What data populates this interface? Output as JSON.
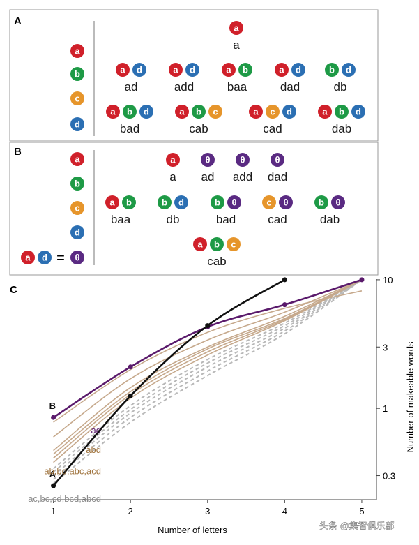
{
  "colors": {
    "a": "#d0202a",
    "b": "#1e9a46",
    "c": "#e6952b",
    "d": "#2b6fb3",
    "theta": "#5a2a82",
    "panel_border": "#9a9a9a",
    "line_A": "#111111",
    "line_B": "#5a1a6b",
    "line_tan": "#c6a98c",
    "line_gray": "#b8b8b8",
    "label_tan": "#a0743e",
    "label_gray": "#8a8a8a"
  },
  "panel_a": {
    "title": "A",
    "alphabet": [
      "a",
      "b",
      "c",
      "d"
    ],
    "words": [
      {
        "letters": [
          "a"
        ],
        "label": "a"
      },
      {
        "letters": [
          "a",
          "d"
        ],
        "label": "ad"
      },
      {
        "letters": [
          "a",
          "d"
        ],
        "label": "add"
      },
      {
        "letters": [
          "a",
          "b"
        ],
        "label": "baa"
      },
      {
        "letters": [
          "a",
          "d"
        ],
        "label": "dad"
      },
      {
        "letters": [
          "b",
          "d"
        ],
        "label": "db"
      },
      {
        "letters": [
          "a",
          "b",
          "d"
        ],
        "label": "bad"
      },
      {
        "letters": [
          "a",
          "b",
          "c"
        ],
        "label": "cab"
      },
      {
        "letters": [
          "a",
          "c",
          "d"
        ],
        "label": "cad"
      },
      {
        "letters": [
          "a",
          "b",
          "d"
        ],
        "label": "dab"
      }
    ]
  },
  "panel_b": {
    "title": "B",
    "alphabet": [
      "a",
      "b",
      "c",
      "d"
    ],
    "combo": {
      "left": [
        "a",
        "d"
      ],
      "equals": "=",
      "right": "θ"
    },
    "words": [
      {
        "letters": [
          "a"
        ],
        "label": "a"
      },
      {
        "letters": [
          "θ"
        ],
        "label": "ad"
      },
      {
        "letters": [
          "θ"
        ],
        "label": "add"
      },
      {
        "letters": [
          "θ"
        ],
        "label": "dad"
      },
      {
        "letters": [
          "a",
          "b"
        ],
        "label": "baa"
      },
      {
        "letters": [
          "b",
          "d"
        ],
        "label": "db"
      },
      {
        "letters": [
          "b",
          "θ"
        ],
        "label": "bad"
      },
      {
        "letters": [
          "c",
          "θ"
        ],
        "label": "cad"
      },
      {
        "letters": [
          "b",
          "θ"
        ],
        "label": "dab"
      },
      {
        "letters": [
          "a",
          "b",
          "c"
        ],
        "label": "cab"
      }
    ]
  },
  "chart_data": {
    "title": "C",
    "type": "line",
    "xlabel": "Number of letters",
    "ylabel": "Number of makeable words",
    "x_ticks": [
      1,
      2,
      3,
      4,
      5
    ],
    "y_ticks": [
      {
        "v": 0.3,
        "label": "0.3"
      },
      {
        "v": 1,
        "label": "1"
      },
      {
        "v": 3,
        "label": "3"
      },
      {
        "v": 10,
        "label": "10"
      }
    ],
    "y_scale": "log",
    "ylim": [
      0.2,
      10.5
    ],
    "xlim": [
      0.85,
      5.1
    ],
    "series": [
      {
        "name": "A",
        "kind": "A",
        "label": "A",
        "x": [
          1,
          2,
          3,
          4
        ],
        "y": [
          0.25,
          1.25,
          4.4,
          10
        ]
      },
      {
        "name": "B",
        "kind": "B",
        "label": "B",
        "x": [
          1,
          2,
          3,
          4,
          5
        ],
        "y": [
          0.85,
          2.1,
          4.3,
          6.4,
          10
        ]
      },
      {
        "name": "ad",
        "kind": "tan",
        "x": [
          1,
          2,
          3,
          4,
          5
        ],
        "y": [
          0.78,
          2.0,
          3.9,
          6.0,
          8.2
        ]
      },
      {
        "name": "abd",
        "kind": "tan",
        "x": [
          1,
          2,
          3,
          4,
          5
        ],
        "y": [
          0.6,
          1.7,
          3.4,
          5.6,
          10
        ]
      },
      {
        "name": "ab",
        "kind": "tan",
        "x": [
          1,
          2,
          3,
          4,
          5
        ],
        "y": [
          0.47,
          1.45,
          3.0,
          5.2,
          10
        ]
      },
      {
        "name": "bd",
        "kind": "tan",
        "x": [
          1,
          2,
          3,
          4,
          5
        ],
        "y": [
          0.44,
          1.35,
          2.9,
          5.0,
          10
        ]
      },
      {
        "name": "abc",
        "kind": "tan",
        "x": [
          1,
          2,
          3,
          4,
          5
        ],
        "y": [
          0.41,
          1.28,
          2.75,
          4.9,
          10
        ]
      },
      {
        "name": "acd",
        "kind": "tan",
        "x": [
          1,
          2,
          3,
          4,
          5
        ],
        "y": [
          0.38,
          1.2,
          2.6,
          4.8,
          10
        ]
      },
      {
        "name": "ac",
        "kind": "gray",
        "x": [
          1,
          2,
          3,
          4,
          5
        ],
        "y": [
          0.34,
          1.05,
          2.4,
          4.6,
          10
        ]
      },
      {
        "name": "bc",
        "kind": "gray",
        "x": [
          1,
          2,
          3,
          4,
          5
        ],
        "y": [
          0.32,
          0.98,
          2.25,
          4.4,
          10
        ]
      },
      {
        "name": "cd",
        "kind": "gray",
        "x": [
          1,
          2,
          3,
          4,
          5
        ],
        "y": [
          0.3,
          0.92,
          2.1,
          4.2,
          10
        ]
      },
      {
        "name": "bcd",
        "kind": "gray",
        "x": [
          1,
          2,
          3,
          4,
          5
        ],
        "y": [
          0.28,
          0.85,
          1.95,
          4.0,
          10
        ]
      },
      {
        "name": "abcd",
        "kind": "gray",
        "x": [
          1,
          2,
          3,
          4,
          5
        ],
        "y": [
          0.26,
          0.78,
          1.8,
          3.8,
          10
        ]
      }
    ],
    "labels": [
      {
        "text": "ad",
        "kind": "B",
        "y": 0.85
      },
      {
        "text": "abd",
        "kind": "tan",
        "y": 0.6
      },
      {
        "text": "ab,bd,abc,acd",
        "kind": "tan",
        "y": 0.41
      },
      {
        "text": "ac,bc,cd,bcd,abcd",
        "kind": "gray",
        "y": 0.25
      }
    ]
  },
  "watermark": "头条 @集智俱乐部"
}
